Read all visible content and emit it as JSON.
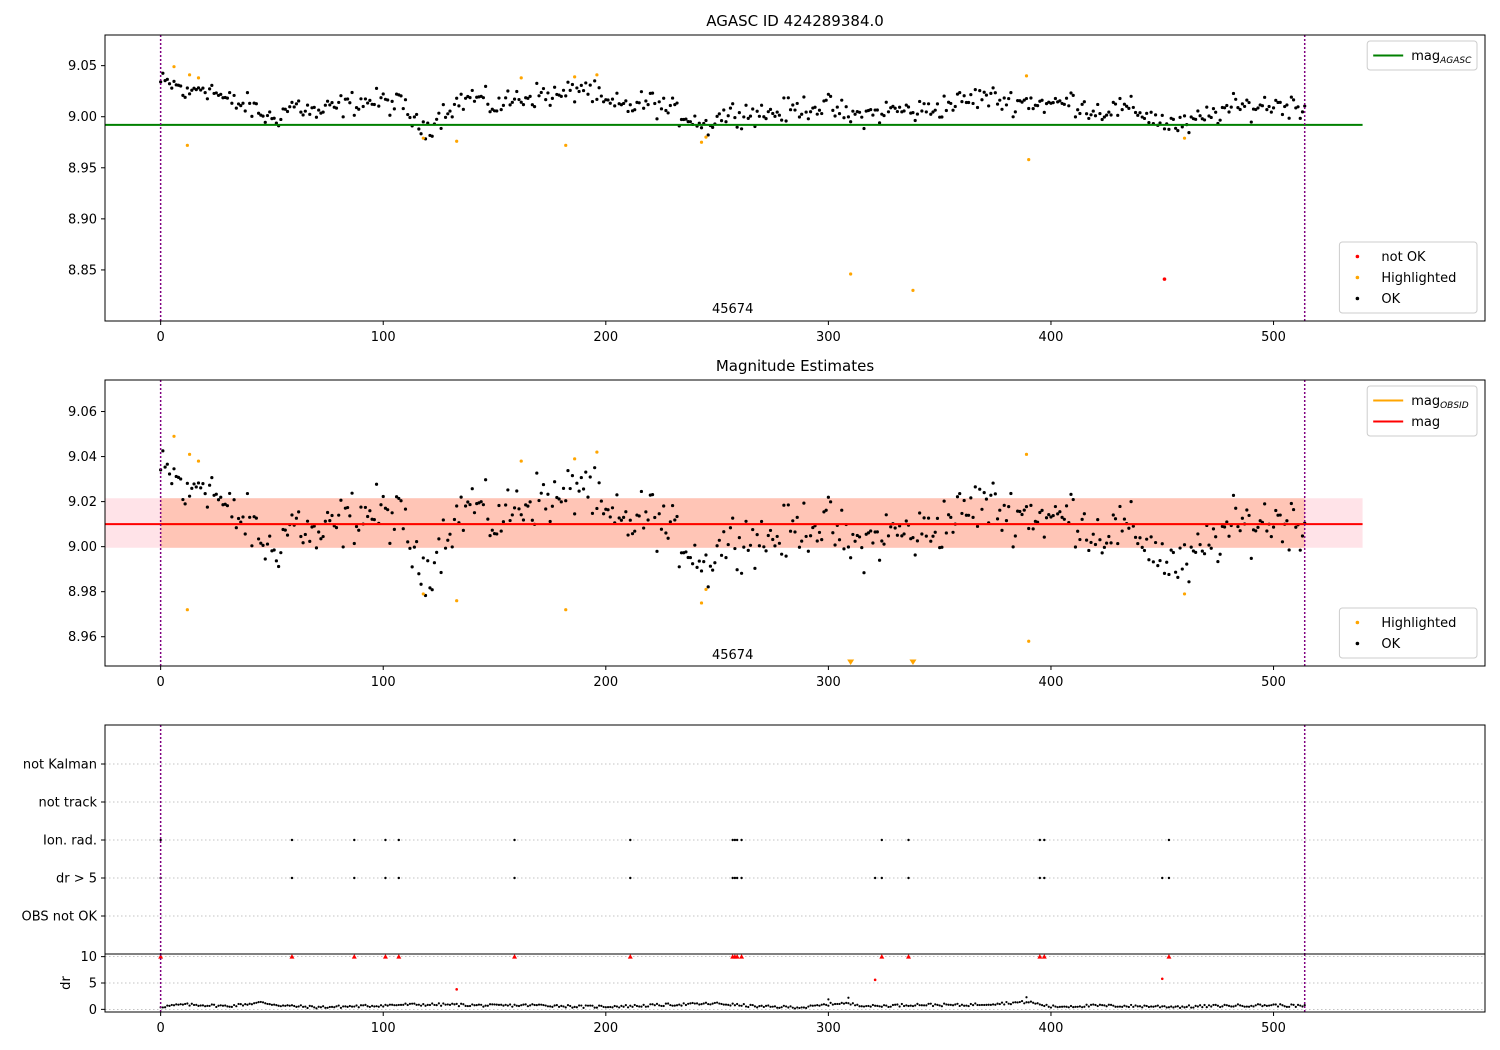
{
  "colors": {
    "ok": "#000000",
    "highlighted": "#ffa500",
    "not_ok": "#ff0000",
    "agasc_line": "#008000",
    "mag_line": "#ff0000",
    "obsid_line": "#ffa500",
    "obsid_band": "#ffa07a",
    "mag_band": "#ffc0cb",
    "obs_boundary": "#800080",
    "grid": "#b0b0b0"
  },
  "chart_data": [
    {
      "type": "scatter",
      "title": "AGASC ID 424289384.0",
      "xlim": [
        -25,
        595
      ],
      "ylim": [
        8.8,
        9.08
      ],
      "xticks": [
        0,
        100,
        200,
        300,
        400,
        500
      ],
      "yticks": [
        8.85,
        8.9,
        8.95,
        9.0,
        9.05
      ],
      "ytick_labels": [
        "8.85",
        "8.90",
        "8.95",
        "9.00",
        "9.05"
      ],
      "obsid_label": {
        "text": "45674",
        "x": 257,
        "y": 8.812
      },
      "obs_boundaries": [
        0,
        514
      ],
      "reference_lines": [
        {
          "name": "mag_AGASC",
          "y": 8.992,
          "x_range": [
            -25,
            540
          ],
          "color": "#008000"
        }
      ],
      "legends": [
        {
          "placement": "top-right",
          "entries": [
            {
              "kind": "line",
              "color": "#008000",
              "label": "mag",
              "sub": "AGASC"
            }
          ]
        },
        {
          "placement": "bottom-right",
          "entries": [
            {
              "kind": "marker",
              "color": "#ff0000",
              "label": "not OK"
            },
            {
              "kind": "marker",
              "color": "#ffa500",
              "label": "Highlighted"
            },
            {
              "kind": "marker",
              "color": "#000000",
              "label": "OK"
            }
          ]
        }
      ],
      "highlighted": [
        [
          6,
          9.049
        ],
        [
          12,
          8.972
        ],
        [
          13,
          9.041
        ],
        [
          17,
          9.038
        ],
        [
          118,
          8.979
        ],
        [
          133,
          8.976
        ],
        [
          162,
          9.038
        ],
        [
          182,
          8.972
        ],
        [
          186,
          9.039
        ],
        [
          196,
          9.041
        ],
        [
          243,
          8.975
        ],
        [
          245,
          8.98
        ],
        [
          310,
          8.846
        ],
        [
          338,
          8.83
        ],
        [
          389,
          9.04
        ],
        [
          390,
          8.958
        ],
        [
          460,
          8.979
        ]
      ],
      "not_ok": [
        [
          451,
          8.841
        ]
      ],
      "ok_series": {
        "x_range": [
          0,
          514
        ],
        "anchors": [
          [
            0,
            9.033
          ],
          [
            8,
            9.03
          ],
          [
            12,
            9.02
          ],
          [
            17,
            9.03
          ],
          [
            22,
            9.028
          ],
          [
            30,
            9.015
          ],
          [
            40,
            9.01
          ],
          [
            50,
            8.997
          ],
          [
            60,
            9.012
          ],
          [
            70,
            9.003
          ],
          [
            80,
            9.01
          ],
          [
            90,
            9.015
          ],
          [
            100,
            9.015
          ],
          [
            110,
            9.01
          ],
          [
            115,
            8.99
          ],
          [
            120,
            8.99
          ],
          [
            130,
            9.01
          ],
          [
            140,
            9.02
          ],
          [
            150,
            9.01
          ],
          [
            160,
            9.018
          ],
          [
            170,
            9.022
          ],
          [
            180,
            9.02
          ],
          [
            190,
            9.03
          ],
          [
            200,
            9.012
          ],
          [
            210,
            9.01
          ],
          [
            220,
            9.015
          ],
          [
            230,
            9.005
          ],
          [
            240,
            8.998
          ],
          [
            245,
            8.99
          ],
          [
            250,
            9.0
          ],
          [
            260,
            9.005
          ],
          [
            270,
            9.003
          ],
          [
            280,
            9.005
          ],
          [
            290,
            9.01
          ],
          [
            300,
            9.01
          ],
          [
            310,
            9.0
          ],
          [
            320,
            9.003
          ],
          [
            330,
            9.007
          ],
          [
            340,
            9.005
          ],
          [
            350,
            9.01
          ],
          [
            360,
            9.015
          ],
          [
            370,
            9.02
          ],
          [
            380,
            9.015
          ],
          [
            390,
            9.015
          ],
          [
            400,
            9.012
          ],
          [
            410,
            9.015
          ],
          [
            420,
            9.005
          ],
          [
            430,
            9.008
          ],
          [
            440,
            9.005
          ],
          [
            450,
            8.995
          ],
          [
            460,
            8.99
          ],
          [
            470,
            9.0
          ],
          [
            480,
            9.008
          ],
          [
            490,
            9.01
          ],
          [
            500,
            9.012
          ],
          [
            514,
            9.01
          ]
        ],
        "spread": 0.009
      }
    },
    {
      "type": "scatter",
      "title": "Magnitude Estimates",
      "xlim": [
        -25,
        595
      ],
      "ylim": [
        8.947,
        9.074
      ],
      "xticks": [
        0,
        100,
        200,
        300,
        400,
        500
      ],
      "yticks": [
        8.96,
        8.98,
        9.0,
        9.02,
        9.04,
        9.06
      ],
      "ytick_labels": [
        "8.96",
        "8.98",
        "9.00",
        "9.02",
        "9.04",
        "9.06"
      ],
      "obsid_label": {
        "text": "45674",
        "x": 257,
        "y": 8.952
      },
      "obs_boundaries": [
        0,
        514
      ],
      "reference_lines": [
        {
          "name": "mag_OBSID",
          "y": 9.01,
          "x_range": [
            0,
            514
          ],
          "color": "#ffa500"
        },
        {
          "name": "mag",
          "y": 9.01,
          "x_range": [
            -25,
            540
          ],
          "color": "#ff0000"
        }
      ],
      "bands": [
        {
          "name": "mag range",
          "y_range": [
            8.9995,
            9.0215
          ],
          "x_range": [
            -25,
            540
          ],
          "color": "#ffc0cb"
        },
        {
          "name": "mag_OBSID range",
          "y_range": [
            8.9995,
            9.0215
          ],
          "x_range": [
            0,
            514
          ],
          "color": "#ffa07a"
        }
      ],
      "legends": [
        {
          "placement": "top-right",
          "entries": [
            {
              "kind": "line",
              "color": "#ffa500",
              "label": "mag",
              "sub": "OBSID"
            },
            {
              "kind": "line",
              "color": "#ff0000",
              "label": "mag",
              "sub": ""
            }
          ]
        },
        {
          "placement": "bottom-right",
          "entries": [
            {
              "kind": "marker",
              "color": "#ffa500",
              "label": "Highlighted"
            },
            {
              "kind": "marker",
              "color": "#000000",
              "label": "OK"
            }
          ]
        }
      ],
      "highlighted": [
        [
          6,
          9.049
        ],
        [
          12,
          8.972
        ],
        [
          13,
          9.041
        ],
        [
          17,
          9.038
        ],
        [
          118,
          8.979
        ],
        [
          133,
          8.976
        ],
        [
          162,
          9.038
        ],
        [
          182,
          8.972
        ],
        [
          186,
          9.039
        ],
        [
          196,
          9.042
        ],
        [
          243,
          8.975
        ],
        [
          245,
          8.981
        ],
        [
          389,
          9.041
        ],
        [
          390,
          8.958
        ],
        [
          460,
          8.979
        ]
      ],
      "offscale_markers": [
        [
          310,
          8.948
        ],
        [
          338,
          8.948
        ]
      ],
      "ok_series": {
        "x_range": [
          0,
          514
        ],
        "anchors": [
          [
            0,
            9.033
          ],
          [
            8,
            9.03
          ],
          [
            12,
            9.02
          ],
          [
            17,
            9.03
          ],
          [
            22,
            9.028
          ],
          [
            30,
            9.015
          ],
          [
            40,
            9.01
          ],
          [
            50,
            8.997
          ],
          [
            60,
            9.012
          ],
          [
            70,
            9.003
          ],
          [
            80,
            9.01
          ],
          [
            90,
            9.015
          ],
          [
            100,
            9.015
          ],
          [
            110,
            9.01
          ],
          [
            115,
            8.99
          ],
          [
            120,
            8.99
          ],
          [
            130,
            9.01
          ],
          [
            140,
            9.02
          ],
          [
            150,
            9.01
          ],
          [
            160,
            9.018
          ],
          [
            170,
            9.022
          ],
          [
            180,
            9.02
          ],
          [
            190,
            9.03
          ],
          [
            200,
            9.012
          ],
          [
            210,
            9.01
          ],
          [
            220,
            9.015
          ],
          [
            230,
            9.005
          ],
          [
            240,
            8.998
          ],
          [
            245,
            8.99
          ],
          [
            250,
            9.0
          ],
          [
            260,
            9.005
          ],
          [
            270,
            9.003
          ],
          [
            280,
            9.005
          ],
          [
            290,
            9.01
          ],
          [
            300,
            9.01
          ],
          [
            310,
            9.0
          ],
          [
            320,
            9.003
          ],
          [
            330,
            9.007
          ],
          [
            340,
            9.005
          ],
          [
            350,
            9.01
          ],
          [
            360,
            9.015
          ],
          [
            370,
            9.02
          ],
          [
            380,
            9.015
          ],
          [
            390,
            9.015
          ],
          [
            400,
            9.012
          ],
          [
            410,
            9.015
          ],
          [
            420,
            9.005
          ],
          [
            430,
            9.008
          ],
          [
            440,
            9.005
          ],
          [
            450,
            8.995
          ],
          [
            460,
            8.99
          ],
          [
            470,
            9.0
          ],
          [
            480,
            9.008
          ],
          [
            490,
            9.01
          ],
          [
            500,
            9.012
          ],
          [
            514,
            9.01
          ]
        ],
        "spread": 0.009
      }
    },
    {
      "type": "scatter",
      "title": "",
      "xlim": [
        -25,
        595
      ],
      "categories": [
        "not Kalman",
        "not track",
        "Ion. rad.",
        "dr > 5",
        "OBS not OK"
      ],
      "obs_boundaries": [
        0,
        514
      ],
      "flags": {
        "Ion. rad.": [
          0,
          59,
          87,
          101,
          107,
          159,
          211,
          257,
          258,
          259,
          261,
          324,
          336,
          395,
          397,
          453
        ],
        "dr > 5": [
          0,
          59,
          87,
          101,
          107,
          159,
          211,
          257,
          258,
          259,
          261,
          321,
          324,
          336,
          395,
          397,
          450,
          453
        ]
      }
    },
    {
      "type": "scatter",
      "title": "",
      "ylabel": "dr",
      "xlim": [
        -25,
        595
      ],
      "ylim": [
        -0.5,
        10.5
      ],
      "xticks": [
        0,
        100,
        200,
        300,
        400,
        500
      ],
      "yticks": [
        0,
        5,
        10
      ],
      "ytick_labels": [
        "0",
        "5",
        "10"
      ],
      "obs_boundaries": [
        0,
        514
      ],
      "clipped_markers": [
        0,
        59,
        87,
        101,
        107,
        159,
        211,
        257,
        258,
        259,
        261,
        324,
        336,
        395,
        397,
        453
      ],
      "outliers": [
        [
          133,
          3.8
        ],
        [
          321,
          5.6
        ],
        [
          450,
          5.8
        ]
      ],
      "ok_series": {
        "x_range": [
          0,
          514
        ],
        "anchors": [
          [
            0,
            0.5
          ],
          [
            10,
            0.9
          ],
          [
            20,
            0.8
          ],
          [
            30,
            0.6
          ],
          [
            45,
            1.3
          ],
          [
            55,
            0.7
          ],
          [
            70,
            0.4
          ],
          [
            90,
            0.6
          ],
          [
            110,
            0.9
          ],
          [
            130,
            0.9
          ],
          [
            150,
            0.7
          ],
          [
            170,
            0.8
          ],
          [
            190,
            0.5
          ],
          [
            210,
            0.6
          ],
          [
            230,
            0.9
          ],
          [
            250,
            1.1
          ],
          [
            270,
            0.5
          ],
          [
            290,
            0.4
          ],
          [
            305,
            1.2
          ],
          [
            320,
            0.6
          ],
          [
            340,
            0.9
          ],
          [
            360,
            0.8
          ],
          [
            390,
            1.4
          ],
          [
            400,
            0.5
          ],
          [
            420,
            0.7
          ],
          [
            440,
            0.6
          ],
          [
            460,
            0.5
          ],
          [
            480,
            0.7
          ],
          [
            500,
            0.8
          ],
          [
            514,
            0.6
          ]
        ],
        "spread": 0.25,
        "extra_points": [
          [
            300,
            1.9
          ],
          [
            309,
            2.2
          ],
          [
            389,
            2.3
          ]
        ]
      }
    }
  ]
}
